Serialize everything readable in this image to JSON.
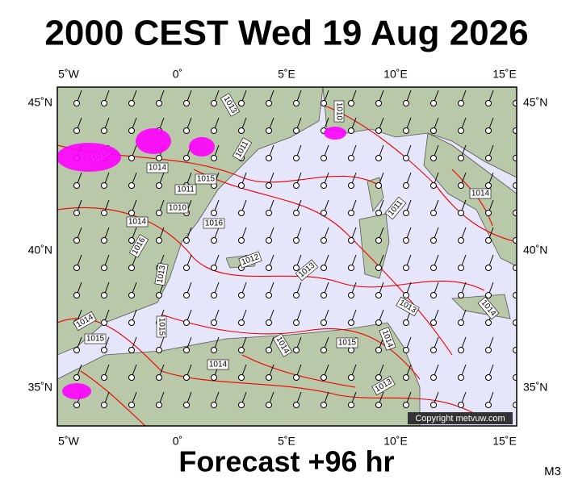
{
  "header": {
    "title": "2000 CEST Wed 19 Aug 2026"
  },
  "axes": {
    "lon_labels": [
      "5˚W",
      "0˚",
      "5˚E",
      "10˚E",
      "15˚E"
    ],
    "lat_labels": [
      "45˚N",
      "40˚N",
      "35˚N"
    ]
  },
  "map": {
    "copyright": "Copyright metvuw.com",
    "isobar_labels": [
      "1013",
      "1010",
      "1016",
      "1011",
      "1014",
      "1015",
      "1011",
      "1010",
      "1016",
      "1014",
      "1011",
      "1014",
      "1016",
      "1012",
      "1013",
      "1013",
      "1014",
      "1015",
      "1015",
      "1014",
      "1013",
      "1013",
      "1014",
      "1014",
      "1015",
      "1014"
    ]
  },
  "footer": {
    "forecast": "Forecast +96 hr",
    "model": "M3"
  }
}
